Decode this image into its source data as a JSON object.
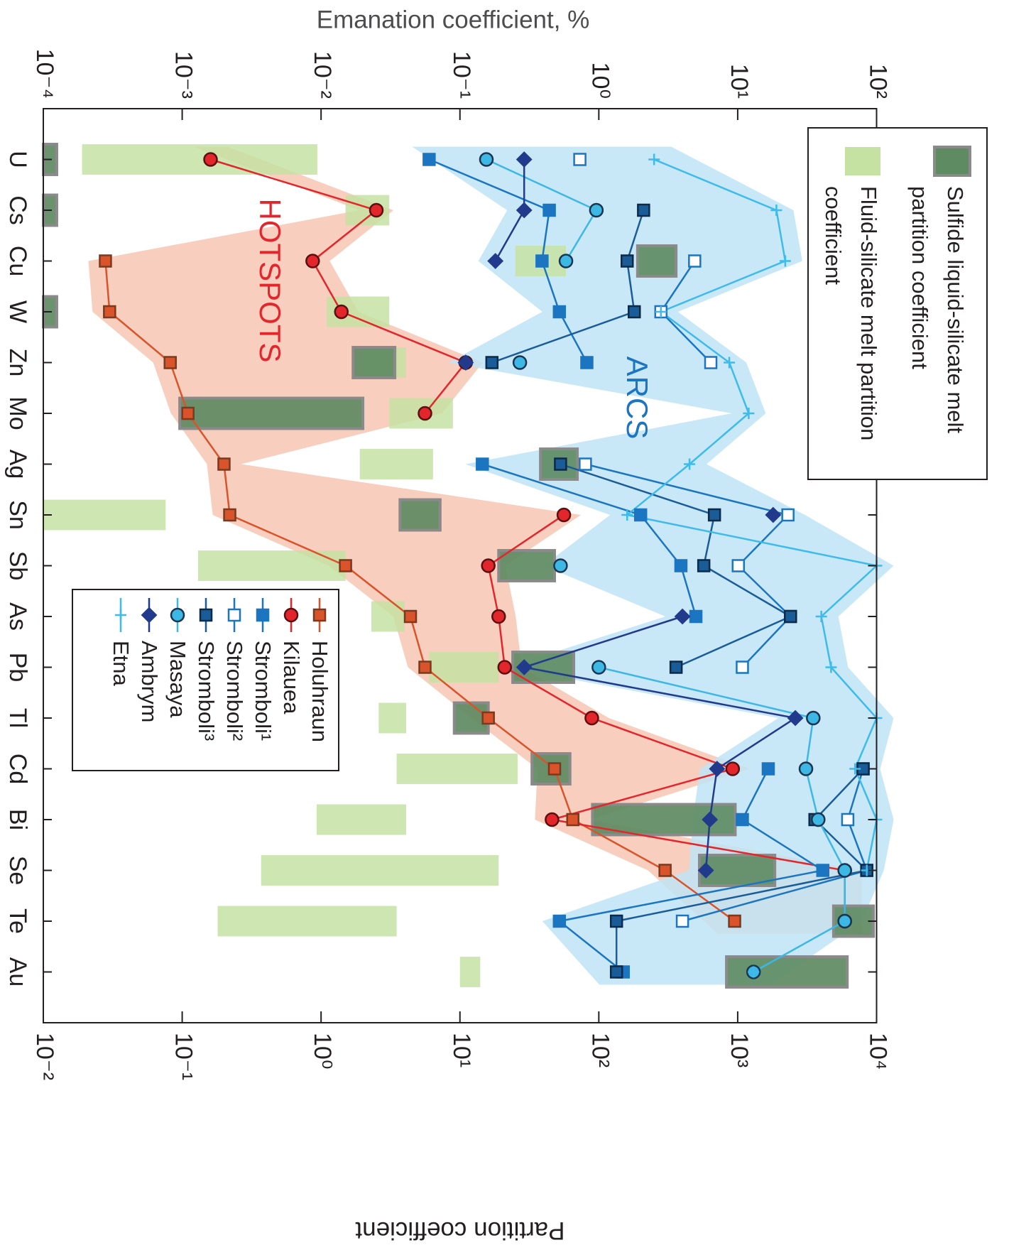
{
  "chart_data": {
    "type": "line",
    "y_label": "Emanation coefficient, %",
    "y2_label": "Partition coefficient",
    "categories": [
      "U",
      "Cs",
      "Cu",
      "W",
      "Zn",
      "Mo",
      "Ag",
      "Sn",
      "Sb",
      "As",
      "Pb",
      "Tl",
      "Cd",
      "Bi",
      "Se",
      "Te",
      "Au"
    ],
    "log_scale": true,
    "ylim": [
      0.0001,
      100
    ],
    "yticks": [
      {
        "value": 0.0001,
        "label": "10⁻⁴"
      },
      {
        "value": 0.001,
        "label": "10⁻³"
      },
      {
        "value": 0.01,
        "label": "10⁻²"
      },
      {
        "value": 0.1,
        "label": "10⁻¹"
      },
      {
        "value": 1,
        "label": "10⁰"
      },
      {
        "value": 10,
        "label": "10¹"
      },
      {
        "value": 100,
        "label": "10²"
      }
    ],
    "y2lim": [
      0.01,
      10000
    ],
    "y2ticks": [
      {
        "value": 0.01,
        "label": "10⁻²"
      },
      {
        "value": 0.1,
        "label": "10⁻¹"
      },
      {
        "value": 1,
        "label": "10⁰"
      },
      {
        "value": 10,
        "label": "10¹"
      },
      {
        "value": 100,
        "label": "10²"
      },
      {
        "value": 1000,
        "label": "10³"
      },
      {
        "value": 10000,
        "label": "10⁴"
      }
    ],
    "bars": [
      {
        "name": "Fluid-silicate melt partition coefficient",
        "color": "#c6e2a3",
        "axis": "y2",
        "low": [
          0.019,
          1.5,
          25,
          1.1,
          2.0,
          3.1,
          1.9,
          0.01,
          0.13,
          2.3,
          6.0,
          2.6,
          3.5,
          0.93,
          0.37,
          0.18,
          10
        ],
        "high": [
          0.94,
          3.1,
          58,
          3.1,
          4.1,
          8.9,
          6.4,
          0.076,
          1.5,
          4.0,
          19,
          4.1,
          26,
          4.1,
          19,
          3.5,
          14
        ]
      },
      {
        "name": "Sulfide liquid-silicate melt partition coefficient",
        "color": "#5e8b62",
        "edge": "#8a8a8a",
        "axis": "y2",
        "low": [
          0.01,
          0.01,
          190,
          0.01,
          1.7,
          0.096,
          38,
          3.7,
          19,
          null,
          24,
          9.1,
          33,
          90,
          530,
          4900,
          830
        ],
        "high": [
          0.0125,
          0.0125,
          360,
          0.0125,
          3.4,
          2.0,
          70,
          7.2,
          48,
          null,
          66,
          16,
          62,
          960,
          1850,
          9500,
          6150
        ]
      }
    ],
    "series": [
      {
        "name": "Holuhraun",
        "color": "#d9532b",
        "marker": "square",
        "marker_fill": "#d9532b",
        "marker_edge": "#7a3a20",
        "values": [
          null,
          null,
          0.00028,
          0.0003,
          0.00082,
          0.0011,
          0.002,
          0.0022,
          0.015,
          0.044,
          0.056,
          0.16,
          0.48,
          0.65,
          3.0,
          9.5,
          null
        ]
      },
      {
        "name": "Kilauea",
        "color": "#e3262b",
        "marker": "circle",
        "marker_fill": "#e3262b",
        "marker_edge": "#5a1010",
        "values": [
          0.0016,
          0.025,
          0.0087,
          0.014,
          0.11,
          0.056,
          null,
          0.56,
          0.16,
          0.19,
          0.21,
          0.89,
          9.2,
          0.46,
          59,
          59,
          null
        ]
      },
      {
        "name": "Stromboli¹",
        "color": "#1b75c0",
        "marker": "square",
        "marker_fill": "#1b75c0",
        "marker_edge": "#1b75c0",
        "values": [
          0.06,
          0.44,
          0.39,
          0.52,
          0.82,
          null,
          0.145,
          2.0,
          3.9,
          5.0,
          null,
          null,
          16.6,
          10.8,
          41,
          0.52,
          1.5
        ]
      },
      {
        "name": "Stromboli²",
        "color": "#1b75c0",
        "marker": "square",
        "marker_fill": "#ffffff",
        "marker_edge": "#1b75c0",
        "values": [
          0.73,
          null,
          4.9,
          2.8,
          6.4,
          null,
          0.8,
          23,
          10.1,
          24,
          10.8,
          null,
          80,
          62,
          85,
          4.0,
          null
        ]
      },
      {
        "name": "Stromboli³",
        "color": "#1a5c98",
        "marker": "square",
        "marker_fill": "#1a5c98",
        "marker_edge": "#0d2a48",
        "values": [
          null,
          2.1,
          1.6,
          1.8,
          0.17,
          null,
          0.53,
          6.8,
          5.7,
          24,
          3.6,
          null,
          80,
          36,
          85,
          1.34,
          1.34
        ]
      },
      {
        "name": "Masaya",
        "color": "#3db7e4",
        "marker": "circle",
        "marker_fill": "#3db7e4",
        "marker_edge": "#1b3550",
        "values": [
          0.155,
          0.96,
          0.58,
          null,
          0.27,
          null,
          null,
          null,
          0.53,
          null,
          1.0,
          35,
          31,
          38,
          59,
          59,
          13
        ]
      },
      {
        "name": "Ambrym",
        "color": "#223a8c",
        "marker": "diamond",
        "marker_fill": "#223a8c",
        "marker_edge": "#223a8c",
        "values": [
          0.29,
          0.29,
          0.18,
          null,
          0.11,
          null,
          null,
          18,
          null,
          4.0,
          0.29,
          26,
          7.1,
          6.3,
          5.9,
          null,
          null
        ]
      },
      {
        "name": "Etna",
        "color": "#3ebbeb",
        "marker": "plus",
        "marker_fill": "#3ebbeb",
        "marker_edge": "#3ebbeb",
        "values": [
          2.5,
          19,
          22,
          2.8,
          8.7,
          12,
          4.5,
          1.6,
          100,
          40,
          47,
          100,
          70,
          100,
          85,
          null,
          13
        ]
      }
    ],
    "annotations": [
      {
        "text": "HOTSPOTS",
        "color": "#e3262b",
        "fill": "#f7c6b3",
        "members": [
          "Holuhraun",
          "Kilauea"
        ]
      },
      {
        "text": "ARCS",
        "color": "#1b75c0",
        "fill": "#bfe4f6",
        "members": [
          "Stromboli¹",
          "Stromboli²",
          "Stromboli³",
          "Masaya",
          "Ambrym",
          "Etna"
        ]
      }
    ]
  }
}
